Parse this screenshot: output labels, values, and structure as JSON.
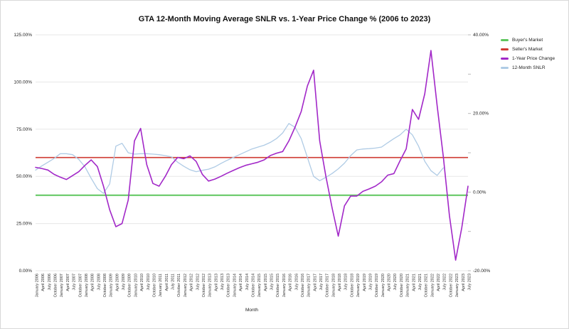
{
  "chart_title": "GTA 12-Month Moving Average SNLR vs. 1-Year Price Change % (2006 to 2023)",
  "legend": {
    "items": [
      {
        "label": "Buyer's Market",
        "color": "#5ec65e"
      },
      {
        "label": "Seller's Market",
        "color": "#cf3a32"
      },
      {
        "label": "1-Year Price Change",
        "color": "#a228c8"
      },
      {
        "label": "12-Month SNLR",
        "color": "#afcbe5"
      }
    ]
  },
  "chart_data": {
    "type": "line",
    "title": "GTA 12-Month Moving Average SNLR vs. 1-Year Price Change % (2006 to 2023)",
    "xlabel": "Month",
    "grid": true,
    "legend_position": "right",
    "x_tick_labels": [
      "January 2006",
      "April 2006",
      "July 2006",
      "October 2006",
      "January 2007",
      "April 2007",
      "July 2007",
      "October 2007",
      "January 2008",
      "April 2008",
      "July 2008",
      "October 2008",
      "January 2009",
      "April 2009",
      "July 2009",
      "October 2009",
      "January 2010",
      "April 2010",
      "July 2010",
      "October 2010",
      "January 2011",
      "April 2011",
      "July 2011",
      "October 2011",
      "January 2012",
      "April 2012",
      "July 2012",
      "October 2012",
      "January 2013",
      "April 2013",
      "July 2013",
      "October 2013",
      "January 2014",
      "April 2014",
      "July 2014",
      "October 2014",
      "January 2015",
      "April 2015",
      "July 2015",
      "October 2015",
      "January 2016",
      "April 2016",
      "July 2016",
      "October 2016",
      "January 2017",
      "April 2017",
      "July 2017",
      "October 2017",
      "January 2018",
      "April 2018",
      "July 2018",
      "October 2018",
      "January 2019",
      "April 2019",
      "July 2019",
      "October 2019",
      "January 2020",
      "April 2020",
      "July 2020",
      "October 2020",
      "January 2021",
      "April 2021",
      "July 2021",
      "October 2021",
      "January 2022",
      "April 2022",
      "July 2022",
      "October 2022",
      "January 2023",
      "April 2023",
      "July 2023"
    ],
    "y_axis_left": {
      "label_ticks": [
        "125.00%",
        "100.00%",
        "75.00%",
        "50.00%",
        "25.00%",
        "0.00%"
      ],
      "tick_values": [
        125,
        100,
        75,
        50,
        25,
        0
      ],
      "min": 0,
      "max": 125
    },
    "y_axis_right": {
      "label_ticks": [
        "40.00%",
        "20.00%",
        "0.00%",
        "-20.00%"
      ],
      "tick_values": [
        40,
        20,
        0,
        -20
      ],
      "minor_tick_values": [
        40,
        30,
        20,
        10,
        0,
        -10,
        -20
      ],
      "min": -20,
      "max": 40
    },
    "reference_lines": [
      {
        "name": "Buyer's Market",
        "axis": "left",
        "value": 40,
        "color": "#5ec65e",
        "width": 2
      },
      {
        "name": "Seller's Market",
        "axis": "left",
        "value": 60,
        "color": "#cf3a32",
        "width": 1.6
      }
    ],
    "series": [
      {
        "name": "12-Month SNLR",
        "axis": "left",
        "color": "#afcbe5",
        "width": 1.3,
        "values": [
          53.3,
          55.5,
          57.5,
          59.5,
          62.0,
          62.0,
          61.5,
          59.0,
          55.0,
          49.0,
          43.5,
          41.0,
          46.0,
          66.0,
          67.5,
          62.5,
          61.8,
          62.0,
          62.0,
          61.8,
          61.5,
          61.0,
          60.3,
          57.5,
          55.3,
          53.5,
          52.5,
          53.2,
          53.8,
          55.0,
          56.8,
          58.5,
          60.0,
          61.5,
          63.0,
          64.5,
          65.5,
          66.5,
          68.0,
          70.0,
          73.0,
          78.0,
          76.0,
          70.0,
          60.0,
          50.0,
          47.7,
          49.5,
          51.5,
          54.0,
          57.0,
          61.0,
          64.0,
          64.5,
          64.7,
          65.0,
          65.5,
          67.8,
          70.0,
          72.0,
          75.0,
          72.0,
          66.0,
          58.0,
          53.0,
          50.5,
          54.5,
          null,
          null,
          null,
          null
        ]
      },
      {
        "name": "1-Year Price Change",
        "axis": "right",
        "color": "#a228c8",
        "width": 1.6,
        "values": [
          6.3,
          6.0,
          5.6,
          4.5,
          3.8,
          3.2,
          4.2,
          5.2,
          6.8,
          8.2,
          6.5,
          1.5,
          -4.5,
          -8.8,
          -8.0,
          -2.0,
          13.0,
          16.2,
          7.0,
          2.2,
          1.5,
          4.0,
          7.0,
          8.8,
          8.5,
          9.2,
          7.8,
          4.5,
          2.8,
          3.3,
          4.0,
          4.8,
          5.5,
          6.2,
          6.8,
          7.2,
          7.6,
          8.2,
          9.3,
          9.9,
          10.3,
          13.0,
          16.5,
          20.5,
          27.0,
          31.0,
          13.0,
          4.0,
          -4.0,
          -11.2,
          -3.5,
          -1.0,
          -1.0,
          0.2,
          0.8,
          1.5,
          2.6,
          4.3,
          4.7,
          8.0,
          11.0,
          21.0,
          18.5,
          25.0,
          36.0,
          22.0,
          9.0,
          -6.0,
          -17.3,
          -9.0,
          1.5
        ]
      }
    ]
  }
}
